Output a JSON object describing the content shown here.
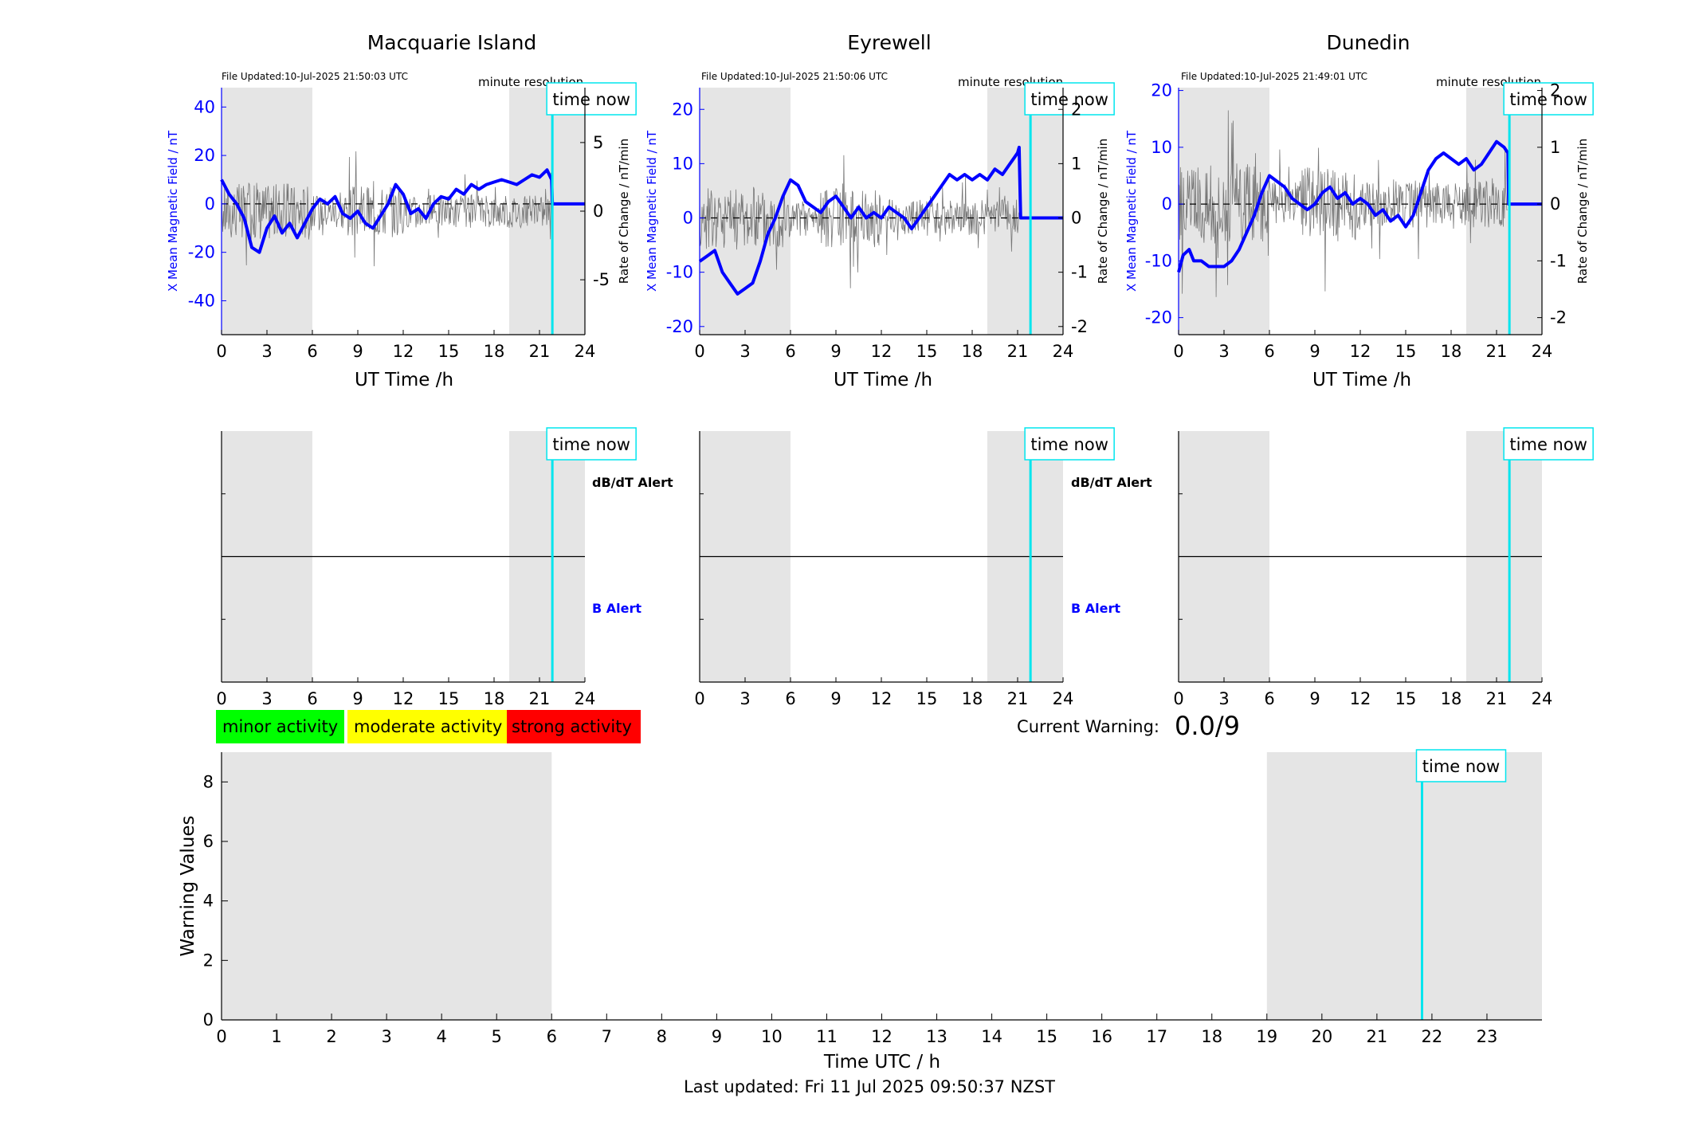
{
  "colors": {
    "shade": "#e5e5e5",
    "x_mean": "#0000ff",
    "rate": "#777777",
    "time_now": "#00e5ee",
    "minor": "#00ff00",
    "moderate": "#ffff00",
    "strong": "#ff0000"
  },
  "common": {
    "time_now_label": "time now",
    "resolution_label": "minute resolution",
    "x_axis_label": "UT Time /h",
    "left_axis_label": "X Mean Magnetic Field / nT",
    "right_axis_label": "Rate of Change / nT/min",
    "dbdt_alert": "dB/dT Alert",
    "b_alert": "B Alert"
  },
  "legend": {
    "minor": "minor activity",
    "moderate": "moderate activity",
    "strong": "strong activity"
  },
  "current_warning": {
    "label": "Current Warning:",
    "value": "0.0/9"
  },
  "footer": {
    "last_updated": "Last updated: Fri 11 Jul 2025 09:50:37 NZST"
  },
  "chart_data": [
    {
      "id": "macquarie",
      "type": "line",
      "title": "Macquarie Island",
      "file_updated": "File Updated:10-Jul-2025 21:50:03 UTC",
      "xlabel": "UT Time /h",
      "ylabel": "X Mean Magnetic Field / nT",
      "ylabel_right": "Rate of Change / nT/min",
      "xlim": [
        0,
        24
      ],
      "ylim": [
        -54,
        48
      ],
      "ylim_right": [
        -9,
        9
      ],
      "xticks": [
        0,
        3,
        6,
        9,
        12,
        15,
        18,
        21,
        24
      ],
      "yticks": [
        -40,
        -20,
        0,
        20,
        40
      ],
      "yticks_right": [
        -5,
        0,
        5
      ],
      "rate_amplitude": 1.6,
      "time_now": 21.85,
      "shaded": [
        [
          0,
          6
        ],
        [
          19,
          24
        ]
      ],
      "series": [
        {
          "x": [
            0,
            0.5,
            1,
            1.5,
            2,
            2.5,
            3,
            3.5,
            4,
            4.5,
            5,
            5.5,
            6,
            6.5,
            7,
            7.5,
            8,
            8.5,
            9,
            9.5,
            10,
            10.5,
            11,
            11.5,
            12,
            12.5,
            13,
            13.5,
            14,
            14.5,
            15,
            15.5,
            16,
            16.5,
            17,
            17.5,
            18,
            18.5,
            19,
            19.5,
            20,
            20.5,
            21,
            21.5,
            21.8,
            21.85,
            24
          ],
          "y": [
            10,
            4,
            0,
            -6,
            -18,
            -20,
            -10,
            -5,
            -12,
            -8,
            -14,
            -8,
            -2,
            2,
            0,
            3,
            -4,
            -6,
            -3,
            -8,
            -10,
            -5,
            0,
            8,
            4,
            -4,
            -2,
            -6,
            0,
            3,
            2,
            6,
            4,
            8,
            6,
            8,
            9,
            10,
            9,
            8,
            10,
            12,
            11,
            14,
            10,
            0,
            0
          ]
        }
      ]
    },
    {
      "id": "eyrewell",
      "type": "line",
      "title": "Eyrewell",
      "file_updated": "File Updated:10-Jul-2025 21:50:06 UTC",
      "xlabel": "UT Time /h",
      "ylabel": "X Mean Magnetic Field / nT",
      "ylabel_right": "Rate of Change / nT/min",
      "xlim": [
        0,
        24
      ],
      "ylim": [
        -21.5,
        24
      ],
      "ylim_right": [
        -2.15,
        2.4
      ],
      "xticks": [
        0,
        3,
        6,
        9,
        12,
        15,
        18,
        21,
        24
      ],
      "yticks": [
        -20,
        -10,
        0,
        10,
        20
      ],
      "yticks_right": [
        -2,
        -1,
        0,
        1,
        2
      ],
      "rate_amplitude": 0.45,
      "time_now": 21.85,
      "shaded": [
        [
          0,
          6
        ],
        [
          19,
          24
        ]
      ],
      "series": [
        {
          "x": [
            0,
            0.5,
            1,
            1.5,
            2,
            2.5,
            3,
            3.5,
            4,
            4.5,
            5,
            5.5,
            6,
            6.5,
            7,
            7.5,
            8,
            8.5,
            9,
            9.5,
            10,
            10.5,
            11,
            11.5,
            12,
            12.5,
            13,
            13.5,
            14,
            14.5,
            15,
            15.5,
            16,
            16.5,
            17,
            17.5,
            18,
            18.5,
            19,
            19.5,
            20,
            20.5,
            21,
            21.1,
            21.2,
            24
          ],
          "y": [
            -8,
            -7,
            -6,
            -10,
            -12,
            -14,
            -13,
            -12,
            -8,
            -3,
            0,
            4,
            7,
            6,
            3,
            2,
            1,
            3,
            4,
            2,
            0,
            2,
            0,
            1,
            0,
            2,
            1,
            0,
            -2,
            0,
            2,
            4,
            6,
            8,
            7,
            8,
            7,
            8,
            7,
            9,
            8,
            10,
            12,
            13,
            0,
            0
          ]
        }
      ]
    },
    {
      "id": "dunedin",
      "type": "line",
      "title": "Dunedin",
      "file_updated": "File Updated:10-Jul-2025 21:49:01 UTC",
      "xlabel": "UT Time /h",
      "ylabel": "X Mean Magnetic Field / nT",
      "ylabel_right": "Rate of Change / nT/min",
      "xlim": [
        0,
        24
      ],
      "ylim": [
        -23,
        20.5
      ],
      "ylim_right": [
        -2.3,
        2.05
      ],
      "xticks": [
        0,
        3,
        6,
        9,
        12,
        15,
        18,
        21,
        24
      ],
      "yticks": [
        -20,
        -10,
        0,
        10,
        20
      ],
      "yticks_right": [
        -2,
        -1,
        0,
        1,
        2
      ],
      "rate_amplitude": 0.55,
      "time_now": 21.85,
      "shaded": [
        [
          0,
          6
        ],
        [
          19,
          24
        ]
      ],
      "series": [
        {
          "x": [
            0,
            0.3,
            0.7,
            1,
            1.5,
            2,
            2.5,
            3,
            3.5,
            4,
            4.5,
            5,
            5.5,
            6,
            6.5,
            7,
            7.5,
            8,
            8.5,
            9,
            9.5,
            10,
            10.5,
            11,
            11.5,
            12,
            12.5,
            13,
            13.5,
            14,
            14.5,
            15,
            15.5,
            16,
            16.5,
            17,
            17.5,
            18,
            18.5,
            19,
            19.5,
            20,
            20.5,
            21,
            21.5,
            21.75,
            21.8,
            24
          ],
          "y": [
            -12,
            -9,
            -8,
            -10,
            -10,
            -11,
            -11,
            -11,
            -10,
            -8,
            -5,
            -2,
            2,
            5,
            4,
            3,
            1,
            0,
            -1,
            0,
            2,
            3,
            1,
            2,
            0,
            1,
            0,
            -2,
            -1,
            -3,
            -2,
            -4,
            -2,
            2,
            6,
            8,
            9,
            8,
            7,
            8,
            6,
            7,
            9,
            11,
            10,
            9,
            0,
            0
          ]
        }
      ]
    },
    {
      "id": "warning",
      "type": "bar",
      "title": "",
      "xlabel": "Time UTC / h",
      "ylabel": "Warning Values",
      "xlim": [
        0,
        24
      ],
      "ylim": [
        0,
        9
      ],
      "xticks": [
        0,
        1,
        2,
        3,
        4,
        5,
        6,
        7,
        8,
        9,
        10,
        11,
        12,
        13,
        14,
        15,
        16,
        17,
        18,
        19,
        20,
        21,
        22,
        23
      ],
      "yticks": [
        0,
        2,
        4,
        6,
        8
      ],
      "time_now": 21.82,
      "shaded": [
        [
          0,
          6
        ],
        [
          19,
          24
        ]
      ],
      "values": []
    }
  ]
}
